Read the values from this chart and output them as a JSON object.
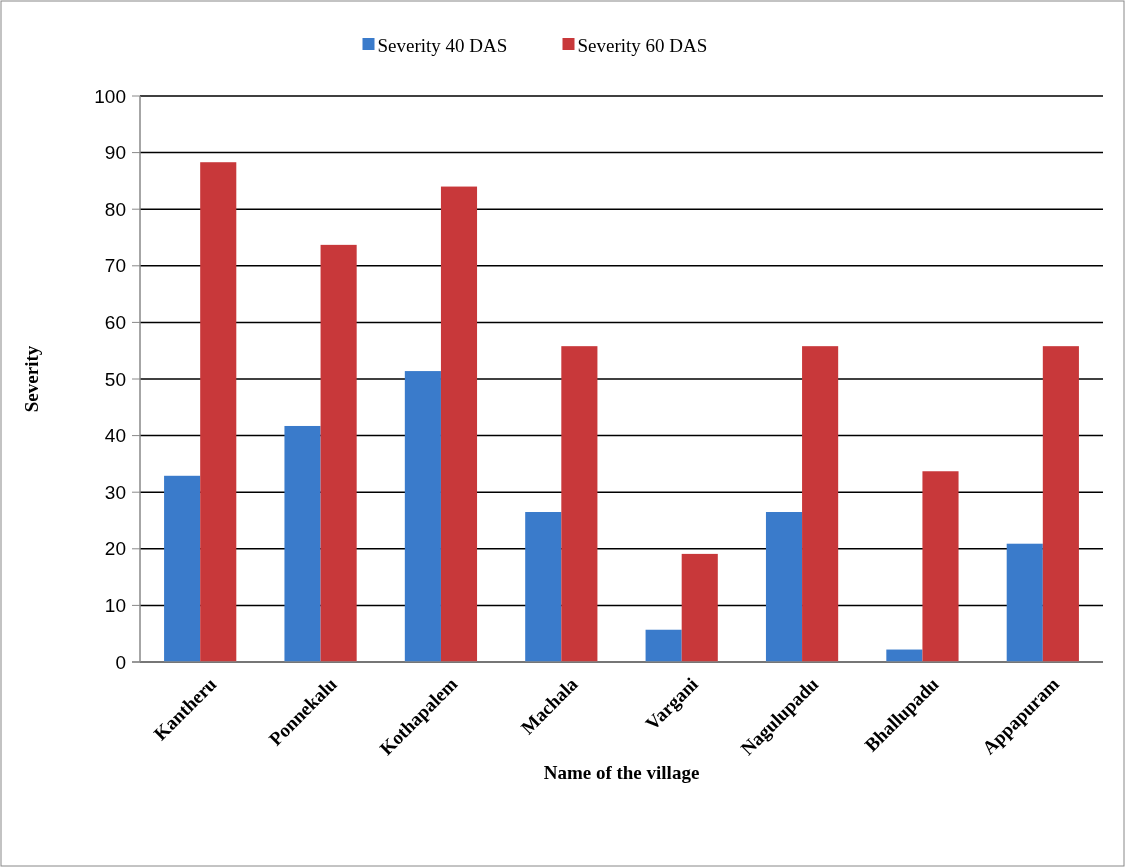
{
  "chart_data": {
    "type": "bar",
    "xlabel": "Name of the village",
    "ylabel": "Severity",
    "categories": [
      "Kantheru",
      "Ponnekalu",
      "Kothapalem",
      "Machala",
      "Vargani",
      "Nagulupadu",
      "Bhallupadu",
      "Appapuram"
    ],
    "series": [
      {
        "name": "Severity 40 DAS",
        "color": "#3a7bcb",
        "values": [
          32.9,
          41.7,
          51.4,
          26.5,
          5.7,
          26.5,
          2.2,
          20.9
        ]
      },
      {
        "name": "Severity 60 DAS",
        "color": "#c8383a",
        "values": [
          88.3,
          73.7,
          84.0,
          55.8,
          19.1,
          55.8,
          33.7,
          55.8
        ]
      }
    ],
    "ylim": [
      0,
      100
    ],
    "yticks": [
      0,
      10,
      20,
      30,
      40,
      50,
      60,
      70,
      80,
      90,
      100
    ],
    "grid": "y",
    "legend": "top"
  }
}
